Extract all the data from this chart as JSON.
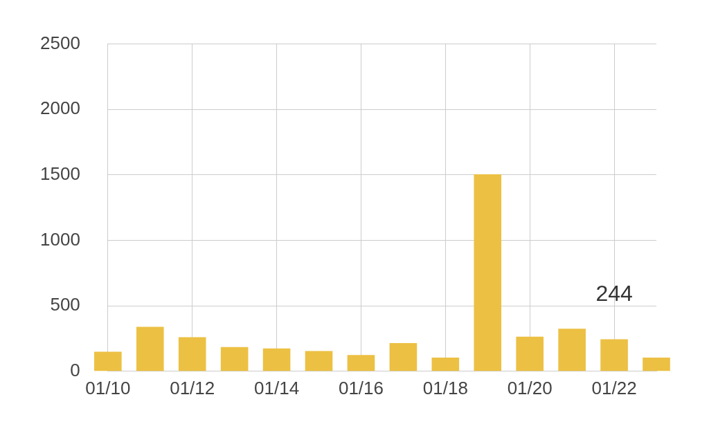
{
  "chart_data": {
    "type": "bar",
    "categories": [
      "01/10",
      null,
      "01/12",
      null,
      "01/14",
      null,
      "01/16",
      null,
      "01/18",
      null,
      "01/20",
      null,
      "01/22",
      null
    ],
    "values": [
      150,
      340,
      260,
      185,
      175,
      155,
      125,
      215,
      105,
      1505,
      265,
      325,
      244,
      105
    ],
    "value_labels": [
      null,
      null,
      null,
      null,
      null,
      null,
      null,
      null,
      null,
      null,
      null,
      null,
      "244",
      null
    ],
    "color": "#ecc043",
    "ylim": [
      0,
      2500
    ],
    "yticks": [
      0,
      500,
      1000,
      1500,
      2000,
      2500
    ],
    "grid": true,
    "legend": false
  }
}
